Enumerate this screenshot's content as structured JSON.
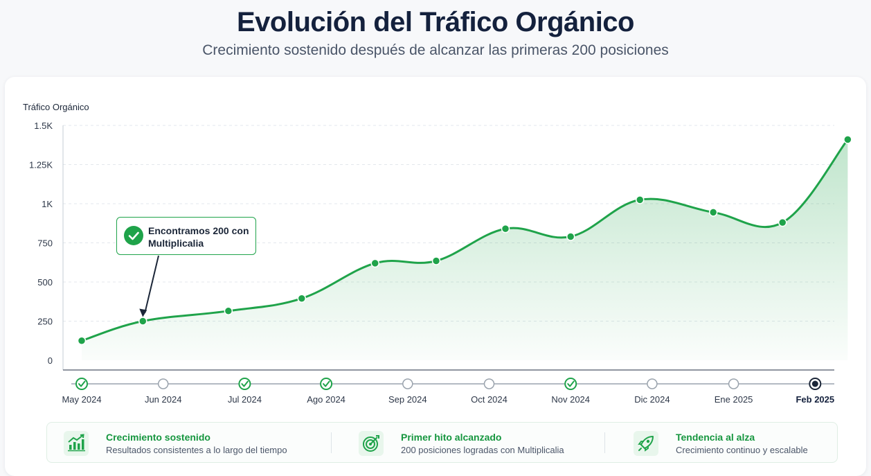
{
  "header": {
    "title": "Evolución del Tráfico Orgánico",
    "subtitle": "Crecimiento sostenido después de alcanzar las primeras 200 posiciones"
  },
  "chart_data": {
    "type": "area",
    "ylabel": "Tráfico Orgánico",
    "ylim": [
      0,
      1500
    ],
    "y_ticks": [
      0,
      250,
      500,
      750,
      1000,
      1250,
      1500
    ],
    "y_tick_labels": [
      "0",
      "250",
      "500",
      "750",
      "1K",
      "1.25K",
      "1.5K"
    ],
    "grid": true,
    "series": [
      {
        "x": [
          0,
          0.75,
          1.8,
          2.7,
          3.6,
          4.35,
          5.2,
          6.0,
          6.85,
          7.75,
          8.6,
          9.4
        ],
        "values": [
          125,
          250,
          315,
          395,
          620,
          635,
          840,
          790,
          1025,
          945,
          880,
          1410
        ],
        "color": "#1fa34a"
      }
    ],
    "months": [
      {
        "label": "May 2024",
        "status": "done"
      },
      {
        "label": "Jun 2024",
        "status": "open"
      },
      {
        "label": "Jul 2024",
        "status": "done"
      },
      {
        "label": "Ago 2024",
        "status": "done"
      },
      {
        "label": "Sep 2024",
        "status": "open"
      },
      {
        "label": "Oct 2024",
        "status": "open"
      },
      {
        "label": "Nov 2024",
        "status": "done"
      },
      {
        "label": "Dic 2024",
        "status": "open"
      },
      {
        "label": "Ene 2025",
        "status": "open"
      },
      {
        "label": "Feb 2025",
        "status": "current"
      }
    ],
    "annotation": {
      "text": "Encontramos 200 con Multiplicalia",
      "point_index": 1
    }
  },
  "features": [
    {
      "icon": "growth-chart-icon",
      "title": "Crecimiento sostenido",
      "desc": "Resultados consistentes a lo largo del tiempo"
    },
    {
      "icon": "target-icon",
      "title": "Primer hito alcanzado",
      "desc": "200 posiciones logradas con Multiplicalia"
    },
    {
      "icon": "rocket-icon",
      "title": "Tendencia al alza",
      "desc": "Crecimiento continuo y escalable"
    }
  ],
  "colors": {
    "accent": "#1fa34a",
    "text_dark": "#14213d",
    "muted": "#4a5568"
  }
}
